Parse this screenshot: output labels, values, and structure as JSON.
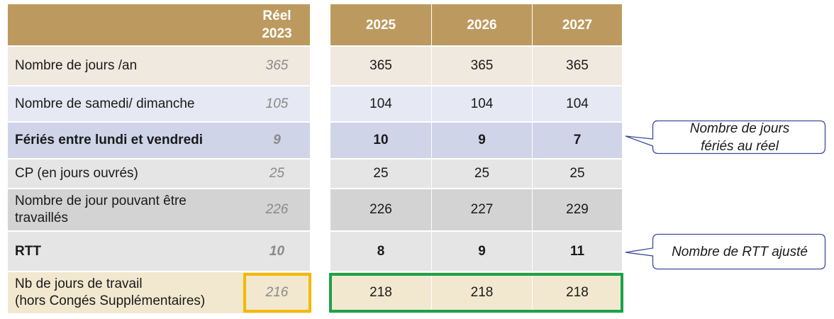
{
  "header": {
    "ref_line1": "Réel",
    "ref_line2": "2023",
    "years": [
      "2025",
      "2026",
      "2027"
    ]
  },
  "rows": [
    {
      "label": "Nombre de jours /an",
      "ref": "365",
      "values": [
        "365",
        "365",
        "365"
      ],
      "bold": false
    },
    {
      "label": "Nombre de samedi/ dimanche",
      "ref": "105",
      "values": [
        "104",
        "104",
        "104"
      ],
      "bold": false
    },
    {
      "label": "Fériés entre lundi et vendredi",
      "ref": "9",
      "values": [
        "10",
        "9",
        "7"
      ],
      "bold": true
    },
    {
      "label": "CP (en jours ouvrés)",
      "ref": "25",
      "values": [
        "25",
        "25",
        "25"
      ],
      "bold": false
    },
    {
      "label_line1": "Nombre de jour pouvant être",
      "label_line2": "travaillés",
      "ref": "226",
      "values": [
        "226",
        "227",
        "229"
      ],
      "bold": false
    },
    {
      "label": "RTT",
      "ref": "10",
      "values": [
        "8",
        "9",
        "11"
      ],
      "bold": true
    },
    {
      "label_line1": "Nb de jours de travail",
      "label_line2": "(hors Congés Supplémentaires)",
      "ref": "216",
      "values": [
        "218",
        "218",
        "218"
      ],
      "bold": false
    }
  ],
  "callouts": {
    "feries_line1": "Nombre de jours",
    "feries_line2": "fériés au réel",
    "rtt": "Nombre de RTT ajusté"
  },
  "colors": {
    "header_gold": "#bc9a5f",
    "highlight_ref": "#f5b800",
    "highlight_years": "#1aa24a",
    "callout_border": "#3b4a9c"
  }
}
